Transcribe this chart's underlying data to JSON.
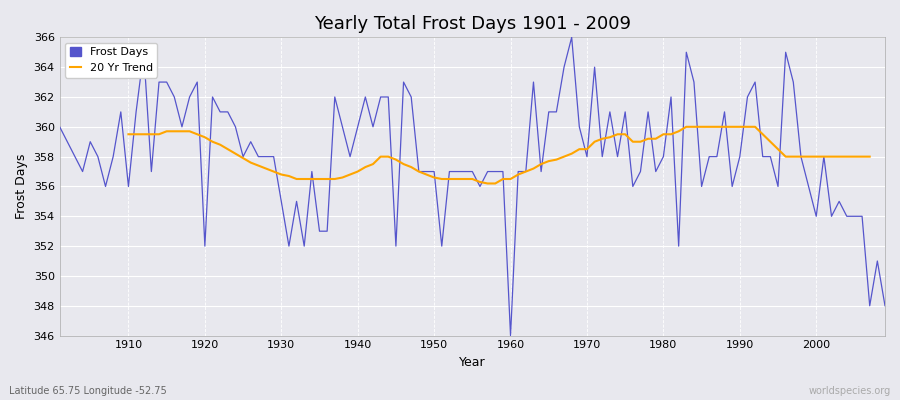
{
  "title": "Yearly Total Frost Days 1901 - 2009",
  "xlabel": "Year",
  "ylabel": "Frost Days",
  "bottom_left_label": "Latitude 65.75 Longitude -52.75",
  "bottom_right_label": "worldspecies.org",
  "years": [
    1901,
    1902,
    1903,
    1904,
    1905,
    1906,
    1907,
    1908,
    1909,
    1910,
    1911,
    1912,
    1913,
    1914,
    1915,
    1916,
    1917,
    1918,
    1919,
    1920,
    1921,
    1922,
    1923,
    1924,
    1925,
    1926,
    1927,
    1928,
    1929,
    1930,
    1931,
    1932,
    1933,
    1934,
    1935,
    1936,
    1937,
    1938,
    1939,
    1940,
    1941,
    1942,
    1943,
    1944,
    1945,
    1946,
    1947,
    1948,
    1949,
    1950,
    1951,
    1952,
    1953,
    1954,
    1955,
    1956,
    1957,
    1958,
    1959,
    1960,
    1961,
    1962,
    1963,
    1964,
    1965,
    1966,
    1967,
    1968,
    1969,
    1970,
    1971,
    1972,
    1973,
    1974,
    1975,
    1976,
    1977,
    1978,
    1979,
    1980,
    1981,
    1982,
    1983,
    1984,
    1985,
    1986,
    1987,
    1988,
    1989,
    1990,
    1991,
    1992,
    1993,
    1994,
    1995,
    1996,
    1997,
    1998,
    1999,
    2000,
    2001,
    2002,
    2003,
    2004,
    2005,
    2006,
    2007,
    2008,
    2009
  ],
  "frost_days": [
    360,
    359,
    358,
    357,
    359,
    358,
    356,
    358,
    361,
    356,
    361,
    365,
    357,
    363,
    363,
    362,
    360,
    362,
    363,
    352,
    362,
    361,
    361,
    360,
    358,
    359,
    358,
    358,
    358,
    355,
    352,
    355,
    352,
    357,
    353,
    353,
    362,
    360,
    358,
    360,
    362,
    360,
    362,
    362,
    352,
    363,
    362,
    357,
    357,
    357,
    352,
    357,
    357,
    357,
    357,
    356,
    357,
    357,
    357,
    346,
    357,
    357,
    363,
    357,
    361,
    361,
    364,
    366,
    360,
    358,
    364,
    358,
    361,
    358,
    361,
    356,
    357,
    361,
    357,
    358,
    362,
    352,
    365,
    363,
    356,
    358,
    358,
    361,
    356,
    358,
    362,
    363,
    358,
    358,
    356,
    365,
    363,
    358,
    356,
    354,
    358,
    354,
    355,
    354,
    354,
    354,
    348,
    351,
    348
  ],
  "trend_values": [
    null,
    null,
    null,
    null,
    null,
    null,
    null,
    null,
    null,
    359.5,
    359.5,
    359.5,
    359.5,
    359.5,
    359.7,
    359.7,
    359.7,
    359.7,
    359.5,
    359.3,
    359.0,
    358.8,
    358.5,
    358.2,
    357.9,
    357.6,
    357.4,
    357.2,
    357.0,
    356.8,
    356.7,
    356.5,
    356.5,
    356.5,
    356.5,
    356.5,
    356.5,
    356.6,
    356.8,
    357.0,
    357.3,
    357.5,
    358.0,
    358.0,
    357.8,
    357.5,
    357.3,
    357.0,
    356.8,
    356.6,
    356.5,
    356.5,
    356.5,
    356.5,
    356.5,
    356.3,
    356.2,
    356.2,
    356.5,
    356.5,
    356.8,
    357.0,
    357.2,
    357.5,
    357.7,
    357.8,
    358.0,
    358.2,
    358.5,
    358.5,
    359.0,
    359.2,
    359.3,
    359.5,
    359.5,
    359.0,
    359.0,
    359.2,
    359.2,
    359.5,
    359.5,
    359.7,
    360.0,
    360.0,
    360.0,
    360.0,
    360.0,
    360.0,
    360.0,
    360.0,
    360.0,
    360.0,
    359.5,
    359.0,
    358.5,
    358.0,
    358.0,
    358.0,
    358.0,
    358.0,
    358.0,
    358.0,
    358.0,
    358.0,
    358.0,
    358.0,
    358.0
  ],
  "ylim": [
    346,
    366
  ],
  "yticks": [
    346,
    348,
    350,
    352,
    354,
    356,
    358,
    360,
    362,
    364,
    366
  ],
  "xticks": [
    1910,
    1920,
    1930,
    1940,
    1950,
    1960,
    1970,
    1980,
    1990,
    2000
  ],
  "bg_color": "#e8e8ee",
  "plot_bg_color": "#e8e8ee",
  "line_color": "#5555cc",
  "trend_color": "#ffa500",
  "grid_color": "#ffffff",
  "title_fontsize": 13,
  "label_fontsize": 9,
  "tick_fontsize": 8,
  "figsize": [
    9.0,
    4.0
  ],
  "dpi": 100
}
